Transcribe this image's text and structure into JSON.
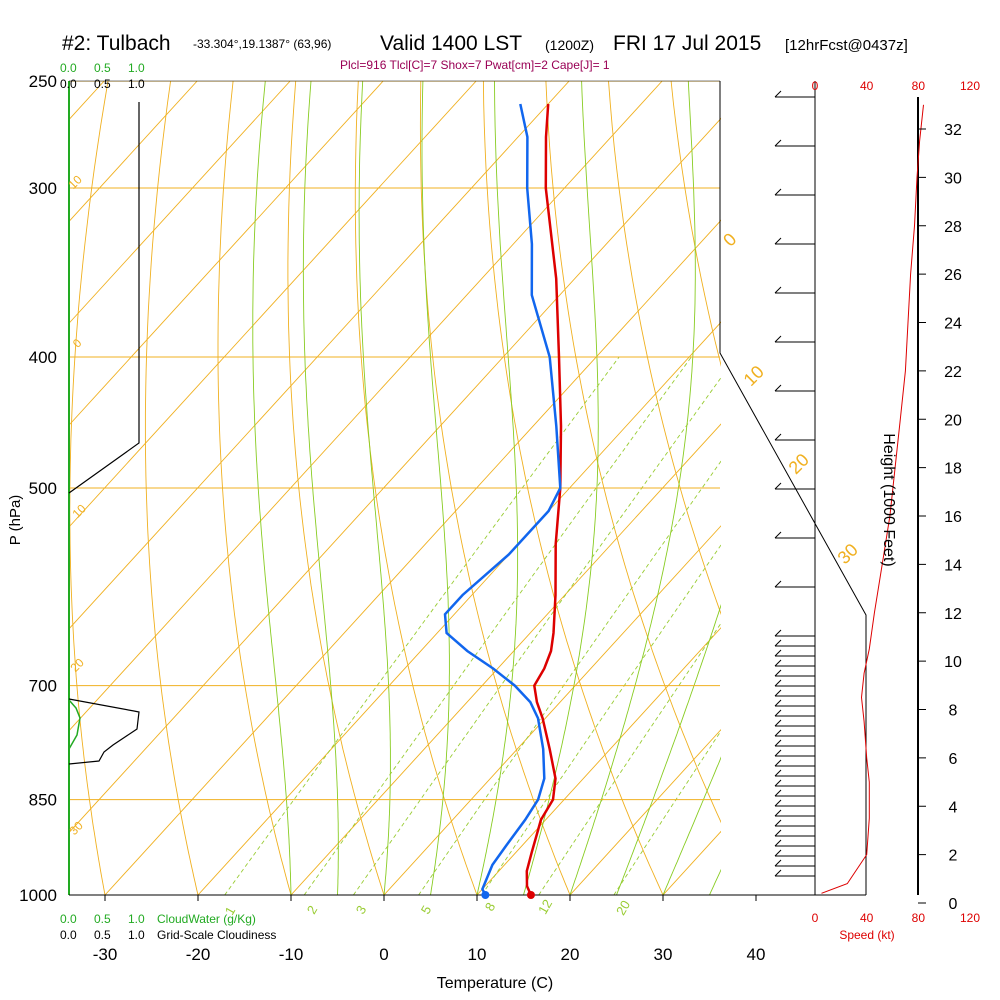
{
  "header": {
    "station": "#2: Tulbach",
    "coords": "-33.304°,19.1387° (63,96)",
    "valid_label": "Valid 1400 LST",
    "utc": "(1200Z)",
    "date": "FRI 17 Jul 2015",
    "forecast": "[12hrFcst@0437z]",
    "params": "Plcl=916 Tlcl[C]=7 Shox=7 Pwat[cm]=2 Cape[J]= 1"
  },
  "axes": {
    "y_title": "P (hPa)",
    "x_title": "Temperature (C)",
    "height_title": "Height (1000 Feet)",
    "speed_title": "Speed (kt)",
    "pressure_ticks": [
      "250",
      "300",
      "400",
      "500",
      "700",
      "850",
      "1000"
    ],
    "temp_ticks": [
      "-30",
      "-20",
      "-10",
      "0",
      "10",
      "20",
      "30",
      "40"
    ],
    "height_ticks": [
      "0",
      "2",
      "4",
      "6",
      "8",
      "10",
      "12",
      "14",
      "16",
      "18",
      "20",
      "22",
      "24",
      "26",
      "28",
      "30",
      "32"
    ],
    "speed_ticks": [
      "0",
      "40",
      "80",
      "120"
    ]
  },
  "scales": {
    "cloud_water": [
      "0.0",
      "0.5",
      "1.0"
    ],
    "cloudiness": [
      "0.0",
      "0.5",
      "1.0"
    ],
    "cloud_water_label": "CloudWater (g/Kg)",
    "cloudiness_label": "Grid-Scale Cloudiness"
  },
  "isotherm_labels": [
    "10",
    "0",
    "10",
    "20",
    "30",
    "0",
    "10",
    "20",
    "30"
  ],
  "mixing_ratio_labels": [
    "1",
    "2",
    "3",
    "5",
    "8",
    "12",
    "20"
  ],
  "colors": {
    "temperature": "#dd0000",
    "dewpoint": "#1166ee",
    "isotherm": "#f0b020",
    "adiabat": "#88cc22",
    "cloudwater": "#22aa22",
    "speed": "#dd0000",
    "mixing_ratio": "#99cc33"
  },
  "chart_data": {
    "type": "line",
    "title": "#2: Tulbach Valid 1400 LST (1200Z) FRI 17 Jul 2015",
    "xlabel": "Temperature (C)",
    "ylabel": "P (hPa)",
    "ylim": [
      250,
      1000
    ],
    "y_scale": "log",
    "skew": true,
    "series": [
      {
        "name": "Temperature",
        "points": [
          {
            "p": 1000,
            "t": 15.8
          },
          {
            "p": 985,
            "t": 14.5
          },
          {
            "p": 960,
            "t": 13.0
          },
          {
            "p": 930,
            "t": 11.7
          },
          {
            "p": 900,
            "t": 10.4
          },
          {
            "p": 880,
            "t": 9.5
          },
          {
            "p": 850,
            "t": 8.8
          },
          {
            "p": 820,
            "t": 7.0
          },
          {
            "p": 780,
            "t": 3.5
          },
          {
            "p": 740,
            "t": -0.3
          },
          {
            "p": 720,
            "t": -2.5
          },
          {
            "p": 700,
            "t": -4.4
          },
          {
            "p": 680,
            "t": -5.0
          },
          {
            "p": 660,
            "t": -6.0
          },
          {
            "p": 640,
            "t": -7.5
          },
          {
            "p": 600,
            "t": -11.0
          },
          {
            "p": 550,
            "t": -16.0
          },
          {
            "p": 500,
            "t": -21.0
          },
          {
            "p": 450,
            "t": -27.0
          },
          {
            "p": 400,
            "t": -34.0
          },
          {
            "p": 350,
            "t": -42.0
          },
          {
            "p": 300,
            "t": -52.0
          },
          {
            "p": 275,
            "t": -57.0
          },
          {
            "p": 260,
            "t": -60.0
          }
        ]
      },
      {
        "name": "Dewpoint",
        "points": [
          {
            "p": 1000,
            "t": 10.9
          },
          {
            "p": 990,
            "t": 10.0
          },
          {
            "p": 950,
            "t": 8.7
          },
          {
            "p": 920,
            "t": 8.3
          },
          {
            "p": 880,
            "t": 7.8
          },
          {
            "p": 850,
            "t": 7.2
          },
          {
            "p": 820,
            "t": 5.8
          },
          {
            "p": 780,
            "t": 2.8
          },
          {
            "p": 740,
            "t": -0.8
          },
          {
            "p": 720,
            "t": -3.2
          },
          {
            "p": 700,
            "t": -6.5
          },
          {
            "p": 680,
            "t": -10.5
          },
          {
            "p": 660,
            "t": -15.0
          },
          {
            "p": 640,
            "t": -19.0
          },
          {
            "p": 620,
            "t": -21.0
          },
          {
            "p": 600,
            "t": -21.0
          },
          {
            "p": 560,
            "t": -20.0
          },
          {
            "p": 520,
            "t": -20.0
          },
          {
            "p": 500,
            "t": -21.0
          },
          {
            "p": 450,
            "t": -27.5
          },
          {
            "p": 400,
            "t": -35.0
          },
          {
            "p": 360,
            "t": -43.0
          },
          {
            "p": 330,
            "t": -48.0
          },
          {
            "p": 300,
            "t": -54.0
          },
          {
            "p": 275,
            "t": -59.0
          },
          {
            "p": 260,
            "t": -63.0
          }
        ]
      }
    ],
    "surface_markers": [
      {
        "name": "Temperature",
        "p": 1000,
        "t": 15.8
      },
      {
        "name": "Dewpoint",
        "p": 1000,
        "t": 10.9
      }
    ],
    "wind_speed_profile": {
      "unit": "kt",
      "xlim": [
        0,
        120
      ],
      "points": [
        {
          "h": 0.4,
          "s": 5
        },
        {
          "h": 0.8,
          "s": 25
        },
        {
          "h": 2.0,
          "s": 40
        },
        {
          "h": 3.5,
          "s": 42
        },
        {
          "h": 5.0,
          "s": 42
        },
        {
          "h": 6.0,
          "s": 40
        },
        {
          "h": 7.5,
          "s": 38
        },
        {
          "h": 8.5,
          "s": 36
        },
        {
          "h": 9.5,
          "s": 38
        },
        {
          "h": 10.5,
          "s": 42
        },
        {
          "h": 12.0,
          "s": 46
        },
        {
          "h": 14.0,
          "s": 52
        },
        {
          "h": 16.0,
          "s": 58
        },
        {
          "h": 18.0,
          "s": 62
        },
        {
          "h": 20.0,
          "s": 66
        },
        {
          "h": 22.0,
          "s": 70
        },
        {
          "h": 24.0,
          "s": 72
        },
        {
          "h": 26.0,
          "s": 74
        },
        {
          "h": 28.0,
          "s": 77
        },
        {
          "h": 30.0,
          "s": 79
        },
        {
          "h": 31.5,
          "s": 81
        },
        {
          "h": 33.0,
          "s": 84
        }
      ]
    }
  }
}
